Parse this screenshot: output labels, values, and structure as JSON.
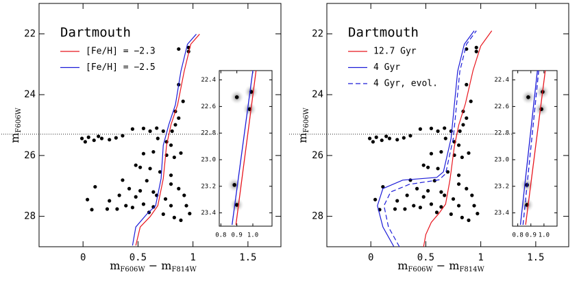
{
  "chart_data": [
    {
      "type": "scatter",
      "title": "Dartmouth",
      "xlabel": [
        "m",
        "F606W",
        " − m",
        "F814W"
      ],
      "ylabel": [
        "m",
        "F606W"
      ],
      "xlim": [
        -0.4,
        1.8
      ],
      "xticks": [
        0,
        0.5,
        1,
        1.5
      ],
      "ylim": [
        29,
        21
      ],
      "yticks": [
        22,
        24,
        26,
        28
      ],
      "hline": 25.3,
      "points": {
        "color": "#000000",
        "x": [
          0.87,
          0.96,
          0.96,
          0.87,
          0.91,
          0.84,
          0.87,
          0.84,
          0.81,
          0.73,
          0.67,
          0.68,
          0.76,
          0.8,
          -0.01,
          0.02,
          0.05,
          0.1,
          0.14,
          0.17,
          0.24,
          0.3,
          0.36,
          0.45,
          0.55,
          0.61,
          0.55,
          0.64,
          0.76,
          0.83,
          0.89,
          0.48,
          0.52,
          0.61,
          0.7,
          0.8,
          0.36,
          0.58,
          0.8,
          0.11,
          0.42,
          0.52,
          0.64,
          0.87,
          0.33,
          0.48,
          0.67,
          0.75,
          0.04,
          0.24,
          0.39,
          0.55,
          0.64,
          0.8,
          0.08,
          0.22,
          0.31,
          0.45,
          0.6,
          0.73,
          0.83,
          0.89,
          0.97,
          0.94,
          0.92
        ],
        "y": [
          22.5,
          22.58,
          22.45,
          23.67,
          24.22,
          24.55,
          24.77,
          24.99,
          25.2,
          25.2,
          25.1,
          25.44,
          25.55,
          25.66,
          25.44,
          25.55,
          25.4,
          25.5,
          25.37,
          25.44,
          25.48,
          25.42,
          25.35,
          25.13,
          25.11,
          25.2,
          25.94,
          25.88,
          25.99,
          26.06,
          25.92,
          26.32,
          26.39,
          26.43,
          26.54,
          26.65,
          26.81,
          26.83,
          26.94,
          27.03,
          27.09,
          27.16,
          27.2,
          27.09,
          27.31,
          27.36,
          27.31,
          27.43,
          27.45,
          27.49,
          27.65,
          27.6,
          27.69,
          27.65,
          27.78,
          27.76,
          27.76,
          27.71,
          27.87,
          27.93,
          28.04,
          28.13,
          27.91,
          27.65,
          27.31
        ]
      },
      "series": [
        {
          "name": "[Fe/H] = −2.3",
          "color": "#e8141c",
          "dash": false,
          "x": [
            0.48,
            0.52,
            0.61,
            0.68,
            0.73,
            0.76,
            0.8,
            0.86,
            0.92,
            0.98,
            1.06
          ],
          "y": [
            28.96,
            28.35,
            28.01,
            27.65,
            26.76,
            25.66,
            24.99,
            24.33,
            23.23,
            22.34,
            22.01
          ]
        },
        {
          "name": "[Fe/H] = −2.5",
          "color": "#1a1ad8",
          "dash": false,
          "x": [
            0.45,
            0.48,
            0.58,
            0.66,
            0.71,
            0.73,
            0.78,
            0.84,
            0.89,
            0.95,
            1.03
          ],
          "y": [
            28.96,
            28.35,
            27.93,
            27.65,
            26.76,
            25.66,
            24.99,
            24.33,
            23.23,
            22.34,
            22.01
          ]
        }
      ],
      "inset": {
        "xlim": [
          0.79,
          1.12
        ],
        "xticks": [
          0.8,
          0.9,
          {
            "value": 1,
            "label": "1.0"
          }
        ],
        "ylim": [
          23.5,
          22.33
        ],
        "yticks": [
          22.4,
          22.6,
          22.8,
          {
            "value": 23,
            "label": "23.0"
          },
          23.2,
          23.4
        ],
        "points": {
          "x": [
            0.9,
            0.99,
            0.98,
            0.885,
            0.9
          ],
          "y": [
            22.53,
            22.49,
            22.62,
            23.19,
            23.34
          ]
        },
        "series": [
          {
            "color": "#e8141c",
            "dash": false,
            "x": [
              0.894,
              1.02
            ],
            "y": [
              23.49,
              22.33
            ]
          },
          {
            "color": "#1a1ad8",
            "dash": false,
            "x": [
              0.87,
              1.0
            ],
            "y": [
              23.49,
              22.33
            ]
          }
        ]
      }
    },
    {
      "type": "scatter",
      "title": "Dartmouth",
      "xlabel": [
        "m",
        "F606W",
        " − m",
        "F814W"
      ],
      "ylabel": [
        "m",
        "F606W"
      ],
      "xlim": [
        -0.4,
        1.8
      ],
      "xticks": [
        0,
        0.5,
        1,
        1.5
      ],
      "ylim": [
        29,
        21
      ],
      "yticks": [
        22,
        24,
        26,
        28
      ],
      "hline": 25.3,
      "points": {
        "color": "#000000",
        "x": [
          0.87,
          0.96,
          0.96,
          0.87,
          0.91,
          0.84,
          0.87,
          0.84,
          0.81,
          0.73,
          0.67,
          0.68,
          0.76,
          0.8,
          -0.01,
          0.02,
          0.05,
          0.1,
          0.14,
          0.17,
          0.24,
          0.3,
          0.36,
          0.45,
          0.55,
          0.61,
          0.55,
          0.64,
          0.76,
          0.83,
          0.89,
          0.48,
          0.52,
          0.61,
          0.7,
          0.8,
          0.36,
          0.58,
          0.8,
          0.11,
          0.42,
          0.52,
          0.64,
          0.87,
          0.33,
          0.48,
          0.67,
          0.75,
          0.04,
          0.24,
          0.39,
          0.55,
          0.64,
          0.8,
          0.08,
          0.22,
          0.31,
          0.45,
          0.6,
          0.73,
          0.83,
          0.89,
          0.97,
          0.94,
          0.92
        ],
        "y": [
          22.5,
          22.58,
          22.45,
          23.67,
          24.22,
          24.55,
          24.77,
          24.99,
          25.2,
          25.2,
          25.1,
          25.44,
          25.55,
          25.66,
          25.44,
          25.55,
          25.4,
          25.5,
          25.37,
          25.44,
          25.48,
          25.42,
          25.35,
          25.13,
          25.11,
          25.2,
          25.94,
          25.88,
          25.99,
          26.06,
          25.92,
          26.32,
          26.39,
          26.43,
          26.54,
          26.65,
          26.81,
          26.83,
          26.94,
          27.03,
          27.09,
          27.16,
          27.2,
          27.09,
          27.31,
          27.36,
          27.31,
          27.43,
          27.45,
          27.49,
          27.65,
          27.6,
          27.69,
          27.65,
          27.78,
          27.76,
          27.76,
          27.71,
          27.87,
          27.93,
          28.04,
          28.13,
          27.91,
          27.65,
          27.31
        ]
      },
      "series": [
        {
          "name": "12.7 Gyr",
          "color": "#e8141c",
          "dash": false,
          "x": [
            0.48,
            0.5,
            0.55,
            0.62,
            0.68,
            0.72,
            0.76,
            0.8,
            0.86,
            0.93,
            1.0,
            1.1
          ],
          "y": [
            29.0,
            28.6,
            28.2,
            27.9,
            27.6,
            26.8,
            25.7,
            25.0,
            24.3,
            23.2,
            22.4,
            21.9
          ]
        },
        {
          "name": "4 Gyr",
          "color": "#1a1ad8",
          "dash": false,
          "x": [
            0.21,
            0.11,
            0.06,
            0.11,
            0.29,
            0.6,
            0.66,
            0.73,
            0.76,
            0.79,
            0.85,
            0.94
          ],
          "y": [
            29.0,
            28.35,
            27.65,
            27.09,
            26.81,
            26.72,
            26.54,
            25.44,
            24.33,
            23.23,
            22.34,
            21.9
          ]
        },
        {
          "name": "4 Gyr, evol.",
          "color": "#1a1ad8",
          "dash": true,
          "x": [
            0.26,
            0.16,
            0.12,
            0.18,
            0.35,
            0.62,
            0.68,
            0.75,
            0.78,
            0.81,
            0.87,
            0.96
          ],
          "y": [
            29.0,
            28.35,
            27.65,
            27.2,
            26.95,
            26.8,
            26.6,
            25.44,
            24.33,
            23.23,
            22.34,
            21.9
          ]
        }
      ],
      "inset": {
        "xlim": [
          0.76,
          1.1
        ],
        "xticks": [
          0.8,
          0.9,
          {
            "value": 1,
            "label": "1.0"
          }
        ],
        "ylim": [
          23.5,
          22.33
        ],
        "yticks": [
          22.4,
          22.6,
          22.8,
          {
            "value": 23,
            "label": "23.0"
          },
          23.2,
          23.4
        ],
        "points": {
          "x": [
            0.88,
            0.99,
            0.98,
            0.87,
            0.87
          ],
          "y": [
            22.53,
            22.49,
            22.62,
            23.19,
            23.34
          ]
        },
        "series": [
          {
            "color": "#e8141c",
            "dash": false,
            "x": [
              0.86,
              1.01
            ],
            "y": [
              23.49,
              22.33
            ]
          },
          {
            "color": "#1a1ad8",
            "dash": false,
            "x": [
              0.82,
              0.95
            ],
            "y": [
              23.49,
              22.33
            ]
          },
          {
            "color": "#1a1ad8",
            "dash": true,
            "x": [
              0.84,
              0.96
            ],
            "y": [
              23.49,
              22.33
            ]
          }
        ]
      }
    }
  ]
}
